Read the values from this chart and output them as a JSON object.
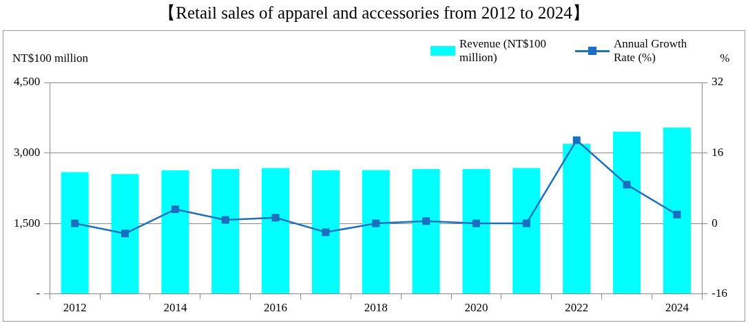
{
  "chart_data": {
    "type": "bar",
    "title": "【Retail sales of apparel and accessories from 2012 to 2024】",
    "ylabel": "NT$100 million",
    "y2label": "%",
    "categories": [
      "2012",
      null,
      "2014",
      null,
      "2016",
      null,
      "2018",
      null,
      "2020",
      null,
      "2022",
      null,
      "2024"
    ],
    "series": [
      {
        "name": "Revenue (NT$100 million)",
        "color": "#00ffff",
        "values": [
          2590,
          2550,
          2630,
          2655,
          2680,
          2630,
          2635,
          2657,
          2657,
          2678,
          3193,
          3454,
          3540
        ]
      },
      {
        "name": "Annual Growth Rate (%)",
        "type": "line",
        "axis": "y2",
        "color": "#1a6fc0",
        "marker": "square",
        "values": [
          0,
          -2.3,
          3.2,
          0.8,
          1.3,
          -2.0,
          0,
          0.5,
          0,
          0,
          18.9,
          8.8,
          2.0
        ]
      }
    ],
    "ylim": [
      0,
      4500
    ],
    "yticks": [
      {
        "value": 0,
        "label": "-"
      },
      {
        "value": 1500,
        "label": "1,500"
      },
      {
        "value": 3000,
        "label": "3,000"
      },
      {
        "value": 4500,
        "label": "4,500"
      }
    ],
    "y2lim": [
      -16,
      32
    ],
    "y2ticks": [
      -16,
      0,
      16,
      32
    ],
    "grid": "y",
    "legend": "top right"
  }
}
